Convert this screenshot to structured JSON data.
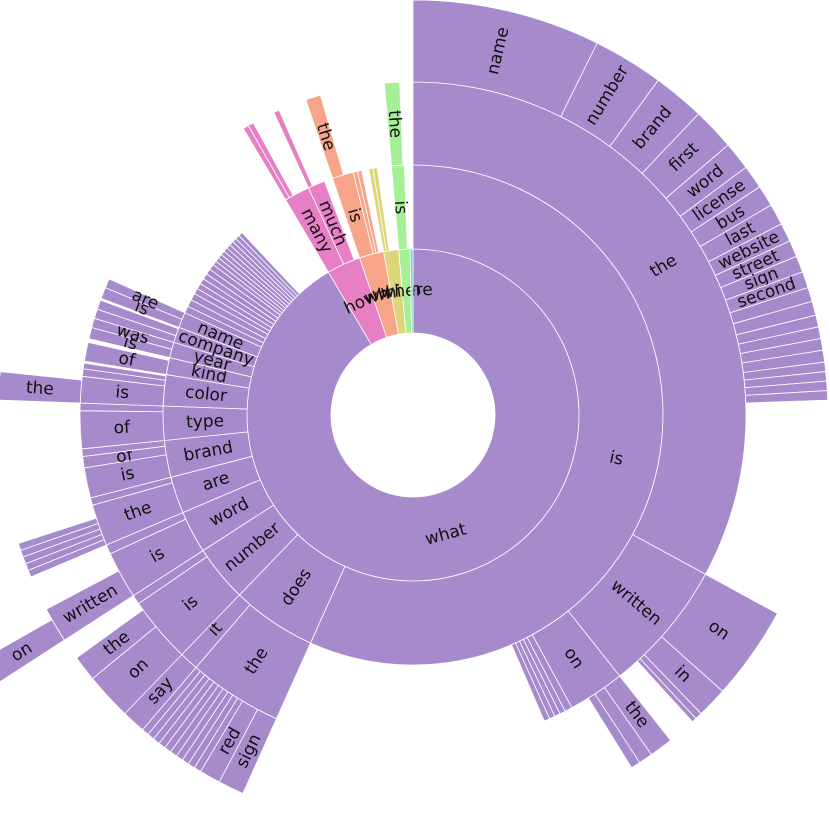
{
  "chart_data": {
    "type": "sunburst",
    "title": "",
    "colors": {
      "what": "#a68acb",
      "how": "#e67fc4",
      "who": "#f7a488",
      "which": "#dcd57a",
      "where": "#a5f096",
      "extra": "#6fd6c6"
    },
    "nodes": [
      {
        "label": "what",
        "value": 100,
        "color": "what",
        "children": [
          {
            "label": "is",
            "value": 62,
            "children": [
              {
                "label": "the",
                "value": 36,
                "children": [
                  {
                    "label": "name",
                    "value": 8
                  },
                  {
                    "label": "number",
                    "value": 3
                  },
                  {
                    "label": "brand",
                    "value": 2.2
                  },
                  {
                    "label": "first",
                    "value": 1.8
                  },
                  {
                    "label": "word",
                    "value": 1.2
                  },
                  {
                    "label": "license",
                    "value": 1
                  },
                  {
                    "label": "bus",
                    "value": 0.9
                  },
                  {
                    "label": "last",
                    "value": 0.9
                  },
                  {
                    "label": "website",
                    "value": 0.8
                  },
                  {
                    "label": "street",
                    "value": 0.7
                  },
                  {
                    "label": "sign",
                    "value": 0.7
                  },
                  {
                    "label": "second",
                    "value": 0.7
                  },
                  {
                    "label": "",
                    "value": 0.6
                  },
                  {
                    "label": "",
                    "value": 0.6
                  },
                  {
                    "label": "",
                    "value": 0.5
                  },
                  {
                    "label": "",
                    "value": 0.5
                  },
                  {
                    "label": "",
                    "value": 0.5
                  },
                  {
                    "label": "",
                    "value": 0.5
                  },
                  {
                    "label": "",
                    "value": 0.4
                  },
                  {
                    "label": "",
                    "value": 0.4
                  },
                  {
                    "label": "",
                    "value": 0.4
                  },
                  {
                    "label": "",
                    "value": 0.4
                  }
                ]
              },
              {
                "label": "written",
                "value": 7,
                "children": [
                  {
                    "label": "on",
                    "value": 4
                  },
                  {
                    "label": "in",
                    "value": 1.3
                  },
                  {
                    "label": "",
                    "value": 0.3
                  },
                  {
                    "label": "",
                    "value": 0.2
                  }
                ]
              },
              {
                "label": "on",
                "value": 3,
                "children": [
                  {
                    "label": "the",
                    "value": 1
                  },
                  {
                    "label": "",
                    "value": 0.6
                  },
                  {
                    "label": "",
                    "value": 0.4
                  }
                ]
              },
              {
                "label": "",
                "value": 0.4
              },
              {
                "label": "",
                "value": 0.3
              },
              {
                "label": "",
                "value": 0.3
              },
              {
                "label": "",
                "value": 0.3
              },
              {
                "label": "",
                "value": 0.3
              }
            ]
          },
          {
            "label": "does",
            "value": 6,
            "children": [
              {
                "label": "the",
                "value": 5,
                "children": [
                  {
                    "label": "sign",
                    "value": 1.1
                  },
                  {
                    "label": "red",
                    "value": 0.9
                  },
                  {
                    "label": "",
                    "value": 0.3
                  },
                  {
                    "label": "",
                    "value": 0.3
                  },
                  {
                    "label": "",
                    "value": 0.3
                  },
                  {
                    "label": "",
                    "value": 0.3
                  },
                  {
                    "label": "",
                    "value": 0.3
                  },
                  {
                    "label": "",
                    "value": 0.3
                  },
                  {
                    "label": "",
                    "value": 0.3
                  },
                  {
                    "label": "",
                    "value": 0.3
                  },
                  {
                    "label": "",
                    "value": 0.3
                  },
                  {
                    "label": "",
                    "value": 0.3
                  }
                ]
              },
              {
                "label": "it",
                "value": 1.2,
                "children": [
                  {
                    "label": "say",
                    "value": 1.1
                  }
                ]
              },
              {
                "label": "",
                "value": 0.4
              }
            ]
          },
          {
            "label": "number",
            "value": 4,
            "children": [
              {
                "label": "is",
                "value": 3.5,
                "children": [
                  {
                    "label": "on",
                    "value": 2
                  },
                  {
                    "label": "the",
                    "value": 1.1
                  }
                ]
              },
              {
                "label": "",
                "value": 0.5
              }
            ]
          },
          {
            "label": "word",
            "value": 3,
            "children": [
              {
                "label": "is",
                "value": 2.5,
                "children": [
                  {
                    "label": "written",
                    "value": 1.5,
                    "children": [
                      {
                        "label": "on",
                        "value": 1.0
                      }
                    ]
                  }
                ]
              },
              {
                "label": "",
                "value": 0.5
              }
            ]
          },
          {
            "label": "are",
            "value": 2.6,
            "children": [
              {
                "label": "the",
                "value": 2.2,
                "children": [
                  {
                    "label": "",
                    "value": 0.3
                  },
                  {
                    "label": "",
                    "value": 0.3
                  },
                  {
                    "label": "",
                    "value": 0.3
                  },
                  {
                    "label": "",
                    "value": 0.3
                  },
                  {
                    "label": "",
                    "value": 0.3
                  }
                ]
              },
              {
                "label": "",
                "value": 0.4
              }
            ]
          },
          {
            "label": "brand",
            "value": 2.6,
            "children": [
              {
                "label": "is",
                "value": 1.6
              },
              {
                "label": "of",
                "value": 0.6
              },
              {
                "label": "",
                "value": 0.4
              }
            ]
          },
          {
            "label": "type",
            "value": 2.4,
            "children": [
              {
                "label": "of",
                "value": 2.0
              },
              {
                "label": "",
                "value": 0.4
              }
            ]
          },
          {
            "label": "color",
            "value": 2.2,
            "children": [
              {
                "label": "is",
                "value": 1.4,
                "children": [
                  {
                    "label": "the",
                    "value": 1.2
                  }
                ]
              },
              {
                "label": "",
                "value": 0.4
              },
              {
                "label": "",
                "value": 0.3
              }
            ]
          },
          {
            "label": "kind",
            "value": 1.2,
            "children": [
              {
                "label": "of",
                "value": 1
              }
            ]
          },
          {
            "label": "year",
            "value": 1.1,
            "children": [
              {
                "label": "is",
                "value": 0.6
              },
              {
                "label": "was",
                "value": 0.5
              }
            ]
          },
          {
            "label": "company",
            "value": 1.1,
            "children": [
              {
                "label": "",
                "value": 0.5
              },
              {
                "label": "",
                "value": 0.5
              }
            ]
          },
          {
            "label": "name",
            "value": 1.1,
            "children": [
              {
                "label": "is",
                "value": 0.6
              },
              {
                "label": "are",
                "value": 0.5
              }
            ]
          },
          {
            "label": "",
            "value": 0.5
          },
          {
            "label": "",
            "value": 0.5
          },
          {
            "label": "",
            "value": 0.5
          },
          {
            "label": "",
            "value": 0.4
          },
          {
            "label": "",
            "value": 0.4
          },
          {
            "label": "",
            "value": 0.4
          },
          {
            "label": "",
            "value": 0.4
          },
          {
            "label": "",
            "value": 0.4
          },
          {
            "label": "",
            "value": 0.4
          },
          {
            "label": "",
            "value": 0.3
          },
          {
            "label": "",
            "value": 0.3
          },
          {
            "label": "",
            "value": 0.3
          },
          {
            "label": "",
            "value": 0.3
          },
          {
            "label": "",
            "value": 0.3
          },
          {
            "label": "",
            "value": 0.3
          },
          {
            "label": "",
            "value": 0.3
          },
          {
            "label": "",
            "value": 0.3
          },
          {
            "label": "",
            "value": 0.3
          },
          {
            "label": "",
            "value": 0.3
          }
        ]
      },
      {
        "label": "how",
        "value": 3.6,
        "color": "how",
        "children": [
          {
            "label": "many",
            "value": 1.8,
            "children": [
              {
                "label": "",
                "value": 0.3
              },
              {
                "label": "",
                "value": 0.3
              }
            ]
          },
          {
            "label": "much",
            "value": 1.2,
            "children": [
              {
                "label": "",
                "value": 0.3
              }
            ]
          }
        ]
      },
      {
        "label": "who",
        "value": 2.6,
        "color": "who",
        "children": [
          {
            "label": "is",
            "value": 1.5,
            "children": [
              {
                "label": "the",
                "value": 0.8
              }
            ]
          },
          {
            "label": "",
            "value": 0.3
          },
          {
            "label": "",
            "value": 0.3
          }
        ]
      },
      {
        "label": "which",
        "value": 1.6,
        "color": "which",
        "children": [
          {
            "label": "",
            "value": 0.3
          },
          {
            "label": "",
            "value": 0.3
          }
        ]
      },
      {
        "label": "where",
        "value": 1.2,
        "color": "where",
        "children": [
          {
            "label": "is",
            "value": 0.9,
            "children": [
              {
                "label": "the",
                "value": 0.8
              }
            ]
          }
        ]
      },
      {
        "label": "",
        "value": 0.3,
        "color": "extra"
      }
    ]
  }
}
